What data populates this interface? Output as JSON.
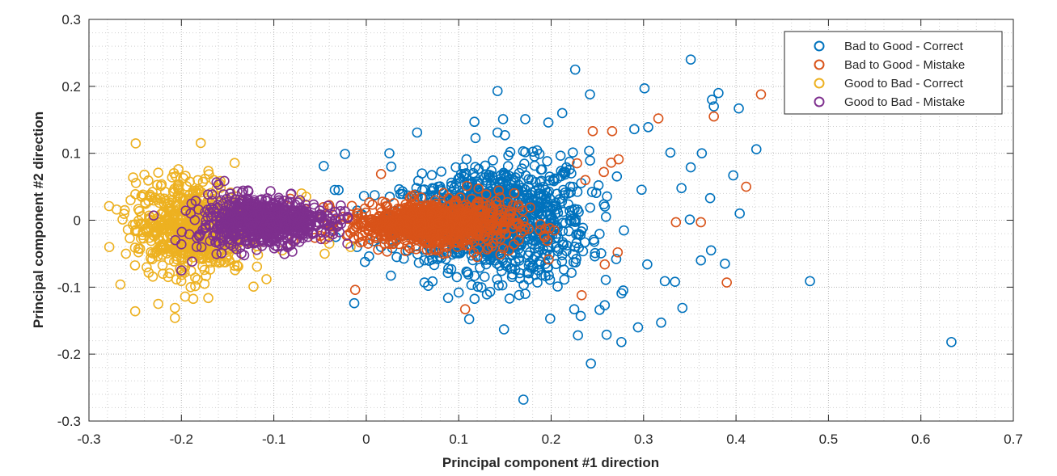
{
  "chart_data": {
    "type": "scatter",
    "title": "",
    "xlabel": "Principal component #1 direction",
    "ylabel": "Principal component #2 direction",
    "xlim": [
      -0.3,
      0.7
    ],
    "ylim": [
      -0.3,
      0.3
    ],
    "xticks": [
      -0.3,
      -0.2,
      -0.1,
      0,
      0.1,
      0.2,
      0.3,
      0.4,
      0.5,
      0.6,
      0.7
    ],
    "xtick_labels": [
      "-0.3",
      "-0.2",
      "-0.1",
      "0",
      "0.1",
      "0.2",
      "0.3",
      "0.4",
      "0.5",
      "0.6",
      "0.7"
    ],
    "yticks": [
      -0.3,
      -0.2,
      -0.1,
      0,
      0.1,
      0.2,
      0.3
    ],
    "ytick_labels": [
      "-0.3",
      "-0.2",
      "-0.1",
      "0",
      "0.1",
      "0.2",
      "0.3"
    ],
    "grid": "major and minor (dotted)",
    "legend_position": "top-right",
    "series": [
      {
        "name": "Bad to Good - Correct",
        "color": "#0072BD",
        "points": [
          [
            0.351,
            0.24
          ],
          [
            0.226,
            0.225
          ],
          [
            0.142,
            0.193
          ],
          [
            0.242,
            0.188
          ],
          [
            0.301,
            0.197
          ],
          [
            0.381,
            0.19
          ],
          [
            0.374,
            0.18
          ],
          [
            0.376,
            0.17
          ],
          [
            0.403,
            0.167
          ],
          [
            0.422,
            0.106
          ],
          [
            0.363,
            0.1
          ],
          [
            0.329,
            0.101
          ],
          [
            0.351,
            0.079
          ],
          [
            0.397,
            0.067
          ],
          [
            0.29,
            0.136
          ],
          [
            0.305,
            0.139
          ],
          [
            0.212,
            0.16
          ],
          [
            0.172,
            0.151
          ],
          [
            0.148,
            0.151
          ],
          [
            0.117,
            0.147
          ],
          [
            0.197,
            0.146
          ],
          [
            0.055,
            0.131
          ],
          [
            0.142,
            0.131
          ],
          [
            0.15,
            0.127
          ],
          [
            -0.023,
            0.099
          ],
          [
            0.025,
            0.1
          ],
          [
            -0.046,
            0.081
          ],
          [
            0.027,
            0.08
          ],
          [
            -0.03,
            0.045
          ],
          [
            0.372,
            0.033
          ],
          [
            0.341,
            0.048
          ],
          [
            0.404,
            0.01
          ],
          [
            0.35,
            0.001
          ],
          [
            0.373,
            -0.045
          ],
          [
            0.388,
            -0.065
          ],
          [
            0.48,
            -0.091
          ],
          [
            0.633,
            -0.182
          ],
          [
            0.342,
            -0.131
          ],
          [
            0.362,
            -0.06
          ],
          [
            0.319,
            -0.153
          ],
          [
            0.294,
            -0.16
          ],
          [
            0.276,
            -0.182
          ],
          [
            0.26,
            -0.171
          ],
          [
            0.243,
            -0.214
          ],
          [
            0.229,
            -0.172
          ],
          [
            0.17,
            -0.268
          ],
          [
            0.149,
            -0.163
          ],
          [
            0.334,
            -0.092
          ],
          [
            0.323,
            -0.091
          ],
          [
            0.304,
            -0.066
          ],
          [
            0.278,
            -0.105
          ],
          [
            0.258,
            -0.127
          ],
          [
            0.232,
            -0.143
          ],
          [
            0.225,
            -0.133
          ],
          [
            0.199,
            -0.147
          ],
          [
            0.155,
            -0.117
          ],
          [
            0.1,
            -0.108
          ],
          [
            0.063,
            -0.093
          ],
          [
            0.098,
            -0.085
          ],
          [
            0.067,
            -0.098
          ],
          [
            0.134,
            -0.107
          ],
          [
            0.172,
            -0.11
          ],
          [
            0.207,
            -0.099
          ],
          [
            -0.013,
            -0.124
          ],
          [
            0.003,
            -0.054
          ],
          [
            -0.033,
            -0.025
          ],
          [
            -0.01,
            -0.04
          ]
        ],
        "cluster": {
          "cx": 0.14,
          "cy": 0.0,
          "sx": 0.05,
          "sy": 0.05,
          "count": 1100
        }
      },
      {
        "name": "Bad to Good - Mistake",
        "color": "#D95319",
        "points": [
          [
            0.427,
            0.188
          ],
          [
            0.316,
            0.152
          ],
          [
            0.376,
            0.155
          ],
          [
            0.411,
            0.05
          ],
          [
            0.39,
            -0.093
          ],
          [
            0.362,
            -0.003
          ],
          [
            0.335,
            -0.003
          ],
          [
            0.245,
            0.133
          ],
          [
            0.266,
            0.133
          ],
          [
            0.273,
            0.091
          ],
          [
            0.265,
            0.086
          ],
          [
            0.257,
            0.072
          ],
          [
            0.233,
            -0.112
          ],
          [
            0.107,
            -0.133
          ],
          [
            -0.012,
            -0.104
          ],
          [
            0.258,
            -0.066
          ],
          [
            0.272,
            -0.048
          ],
          [
            0.016,
            0.069
          ],
          [
            0.237,
            0.06
          ],
          [
            0.228,
            0.085
          ]
        ],
        "cluster": {
          "cx": 0.07,
          "cy": -0.005,
          "sx": 0.045,
          "sy": 0.025,
          "count": 900
        }
      },
      {
        "name": "Good to Bad - Correct",
        "color": "#EDB120",
        "points": [
          [
            -0.25,
            -0.136
          ],
          [
            -0.225,
            -0.125
          ],
          [
            -0.207,
            -0.146
          ],
          [
            -0.207,
            -0.131
          ],
          [
            -0.266,
            -0.096
          ],
          [
            -0.278,
            -0.04
          ],
          [
            -0.27,
            0.016
          ],
          [
            -0.24,
            0.068
          ],
          [
            -0.225,
            0.071
          ],
          [
            -0.198,
            0.063
          ],
          [
            -0.165,
            0.06
          ],
          [
            -0.22,
            -0.08
          ],
          [
            -0.196,
            -0.07
          ],
          [
            -0.108,
            -0.088
          ],
          [
            -0.045,
            -0.05
          ],
          [
            -0.04,
            -0.035
          ],
          [
            -0.017,
            -0.04
          ],
          [
            -0.065,
            0.035
          ],
          [
            -0.07,
            0.04
          ],
          [
            -0.19,
            -0.1
          ],
          [
            -0.175,
            -0.095
          ],
          [
            -0.23,
            0.0
          ],
          [
            -0.255,
            0.03
          ],
          [
            -0.26,
            -0.05
          ]
        ],
        "cluster": {
          "cx": -0.19,
          "cy": -0.01,
          "sx": 0.03,
          "sy": 0.035,
          "count": 650
        }
      },
      {
        "name": "Good to Bad - Mistake",
        "color": "#7E2F8E",
        "points": [
          [
            -0.2,
            -0.075
          ],
          [
            -0.16,
            0.053
          ],
          [
            -0.2,
            -0.036
          ],
          [
            -0.19,
            0.01
          ],
          [
            -0.08,
            -0.047
          ],
          [
            -0.04,
            -0.025
          ],
          [
            -0.02,
            0.005
          ],
          [
            -0.23,
            0.007
          ]
        ],
        "cluster": {
          "cx": -0.11,
          "cy": -0.002,
          "sx": 0.035,
          "sy": 0.017,
          "count": 750
        }
      }
    ]
  }
}
